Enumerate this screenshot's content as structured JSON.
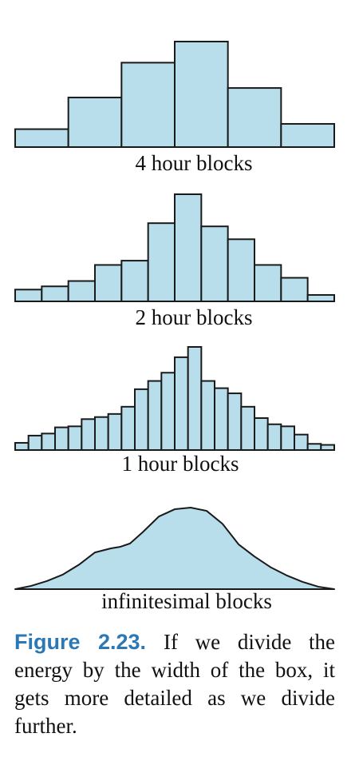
{
  "chart_data": [
    {
      "type": "bar",
      "label": "4 hour blocks",
      "values": [
        0.17,
        0.47,
        0.8,
        1.0,
        0.56,
        0.22
      ],
      "color": "#b8deec"
    },
    {
      "type": "bar",
      "label": "2 hour blocks",
      "values": [
        0.11,
        0.14,
        0.19,
        0.34,
        0.38,
        0.73,
        1.0,
        0.7,
        0.58,
        0.34,
        0.22,
        0.06
      ],
      "color": "#b8deec"
    },
    {
      "type": "bar",
      "label": "1 hour blocks",
      "values": [
        0.07,
        0.14,
        0.16,
        0.22,
        0.23,
        0.3,
        0.32,
        0.35,
        0.42,
        0.59,
        0.67,
        0.75,
        0.9,
        1.0,
        0.67,
        0.6,
        0.55,
        0.42,
        0.31,
        0.25,
        0.23,
        0.15,
        0.06,
        0.05
      ],
      "color": "#b8deec"
    },
    {
      "type": "area",
      "label": "infinitesimal blocks",
      "x": [
        0,
        0.05,
        0.1,
        0.15,
        0.2,
        0.25,
        0.3,
        0.33,
        0.36,
        0.4,
        0.45,
        0.5,
        0.55,
        0.6,
        0.65,
        0.7,
        0.75,
        0.8,
        0.85,
        0.9,
        0.95,
        1.0
      ],
      "values": [
        0.0,
        0.04,
        0.1,
        0.18,
        0.3,
        0.45,
        0.5,
        0.52,
        0.56,
        0.7,
        0.89,
        0.98,
        1.0,
        0.96,
        0.8,
        0.55,
        0.4,
        0.27,
        0.17,
        0.09,
        0.03,
        0.0
      ],
      "color": "#b8deec"
    }
  ],
  "caption": {
    "label": "Figure 2.23.",
    "text": "If we divide the energy by the width of the box, it gets more detailed as we divide further."
  }
}
